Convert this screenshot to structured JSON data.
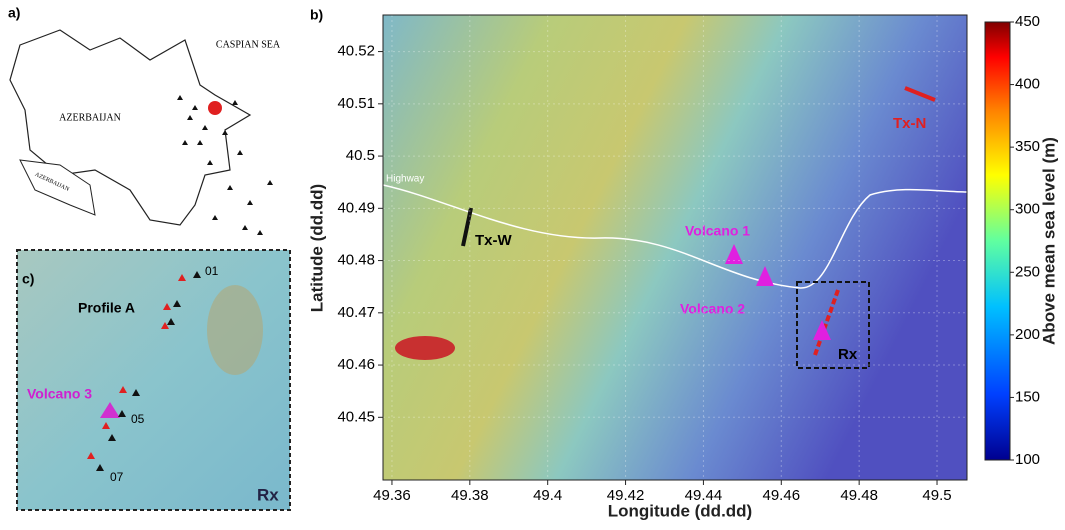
{
  "panel_a": {
    "label": "a)",
    "sea": "CASPIAN SEA",
    "country": "AZERBAIJAN",
    "exclave": "AZERBAIJAN"
  },
  "panel_b": {
    "label": "b)",
    "xlabel": "Longitude (dd.dd)",
    "ylabel": "Latitude (dd.dd)",
    "xlim": [
      49.3577,
      49.5077
    ],
    "ylim": [
      40.438,
      40.527
    ],
    "xticks": [
      49.36,
      49.38,
      49.4,
      49.42,
      49.44,
      49.46,
      49.48,
      49.5
    ],
    "yticks": [
      40.45,
      40.46,
      40.47,
      40.48,
      40.49,
      40.5,
      40.51,
      40.52
    ],
    "annotations": {
      "highway": "Highway",
      "tx_w": "Tx-W",
      "volcano1": "Volcano 1",
      "volcano2": "Volcano 2",
      "rx": "Rx",
      "tx_n": "Tx-N"
    },
    "colorbar": {
      "label": "Above mean sea level (m)",
      "lim": [
        100,
        450
      ],
      "ticks": [
        100,
        150,
        200,
        250,
        300,
        350,
        400,
        450
      ]
    }
  },
  "panel_c": {
    "label": "c)",
    "station1": "01",
    "profile": "Profile A",
    "volcano3": "Volcano 3",
    "station5": "05",
    "station7": "07",
    "rx": "Rx"
  }
}
